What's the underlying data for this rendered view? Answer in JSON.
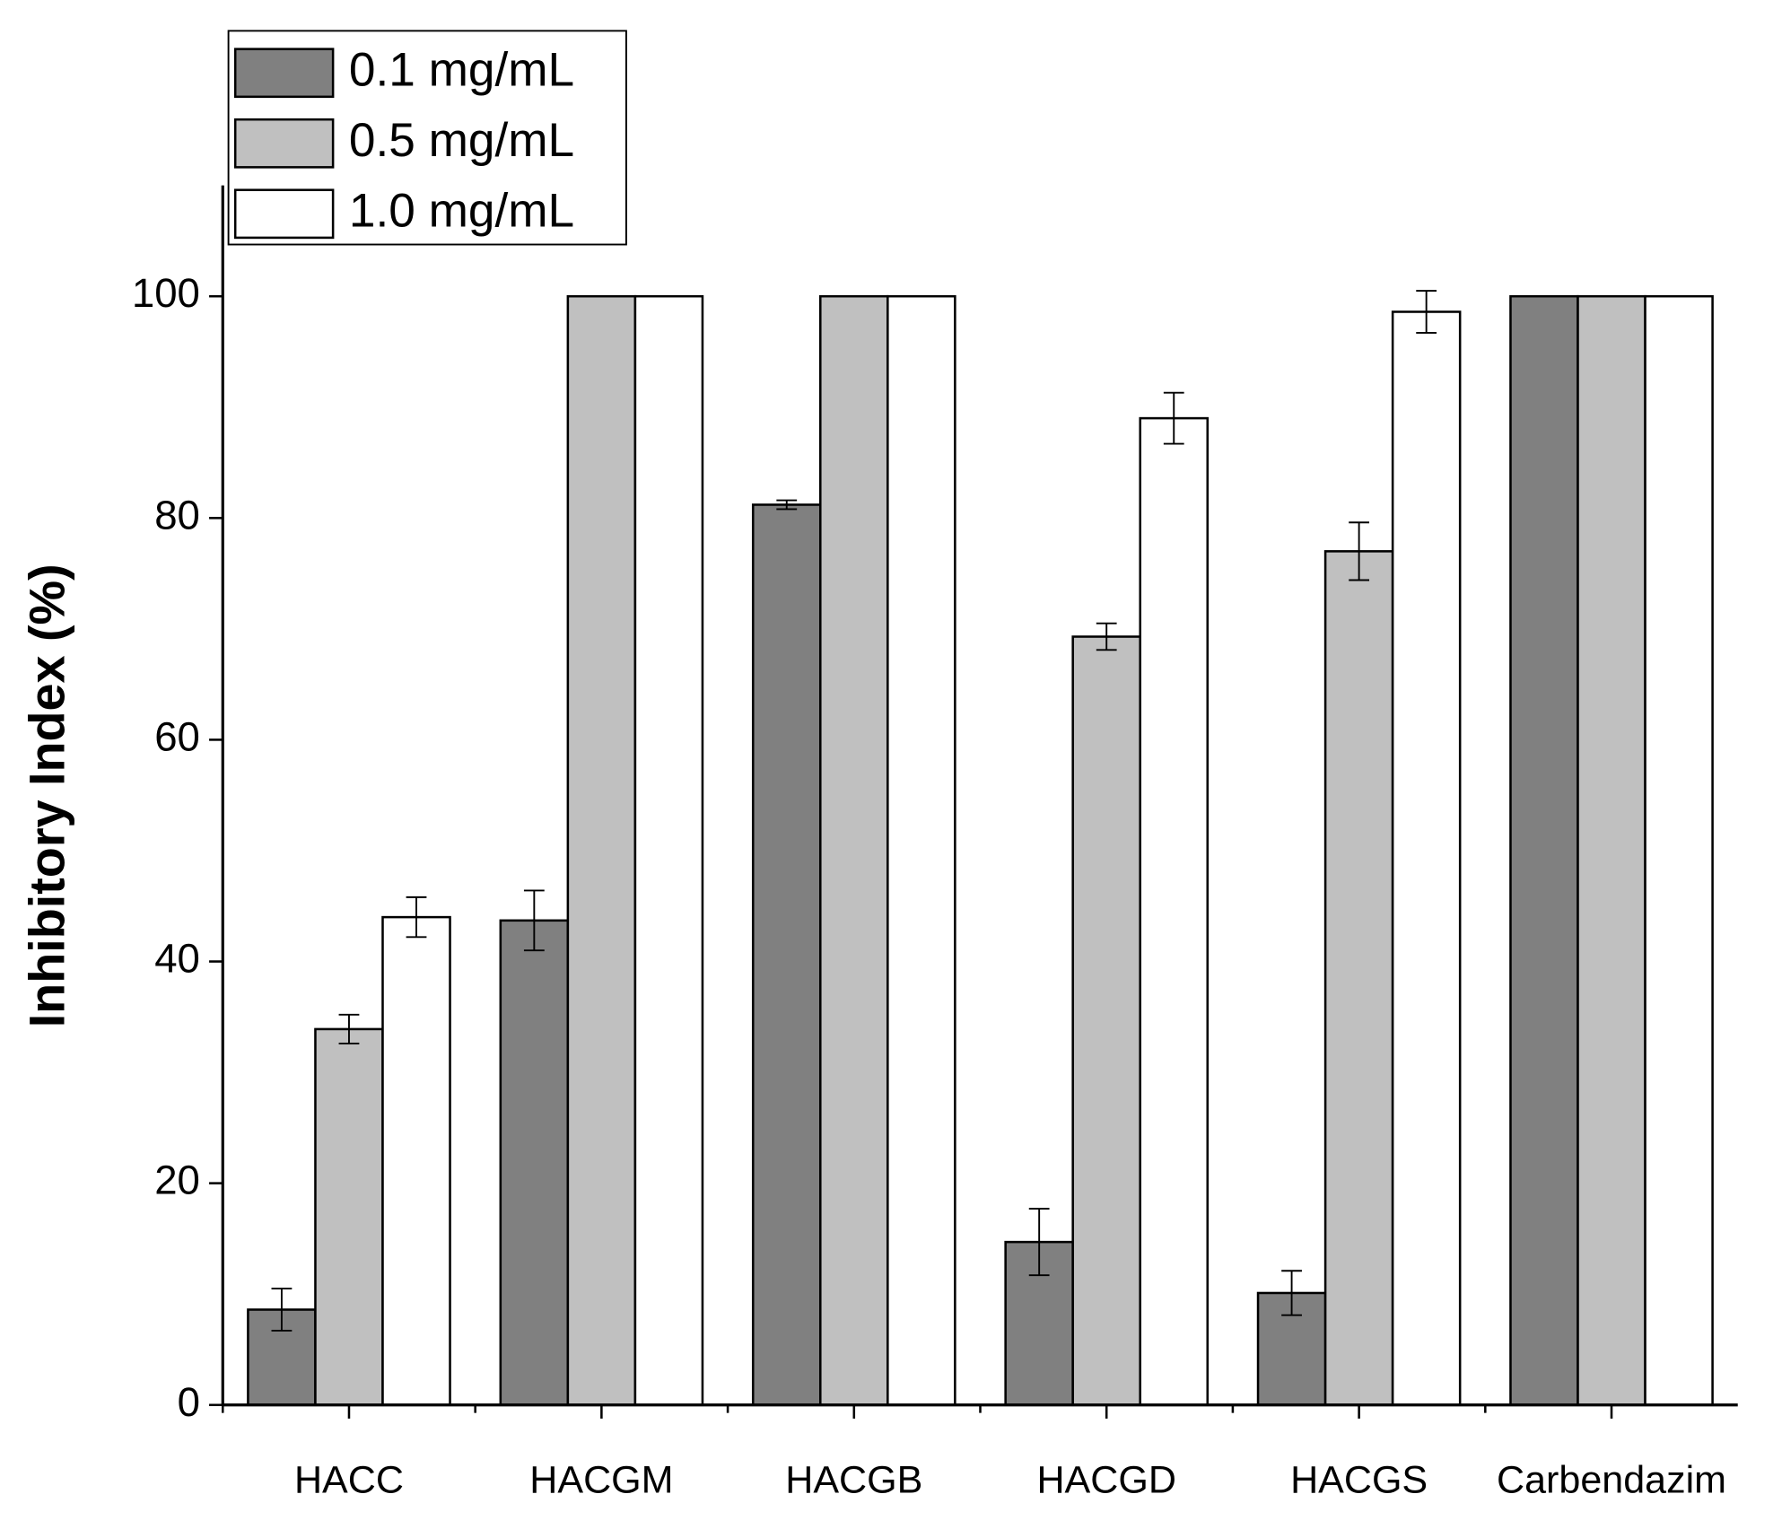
{
  "chart_data": {
    "type": "bar",
    "y_label": "Inhibitory Index (%)",
    "categories": [
      "HACC",
      "HACGM",
      "HACGB",
      "HACGD",
      "HACGS",
      "Carbendazim"
    ],
    "series": [
      {
        "name": "0.1 mg/mL",
        "color": "#808080",
        "values": [
          8.6,
          43.7,
          81.2,
          14.7,
          10.1,
          100
        ],
        "errors": [
          1.9,
          2.7,
          0.4,
          3.0,
          2.0,
          null
        ]
      },
      {
        "name": "0.5 mg/mL",
        "color": "#c0c0c0",
        "values": [
          33.9,
          100,
          100,
          69.3,
          77.0,
          100
        ],
        "errors": [
          1.3,
          null,
          null,
          1.2,
          2.6,
          null
        ]
      },
      {
        "name": "1.0 mg/mL",
        "color": "#ffffff",
        "values": [
          44.0,
          100,
          100,
          89.0,
          98.6,
          100
        ],
        "errors": [
          1.8,
          null,
          null,
          2.3,
          1.9,
          null
        ]
      }
    ],
    "ylim": [
      0,
      110
    ],
    "yticks": [
      0,
      20,
      40,
      60,
      80,
      100
    ],
    "grid": false,
    "legend": "top-left"
  }
}
